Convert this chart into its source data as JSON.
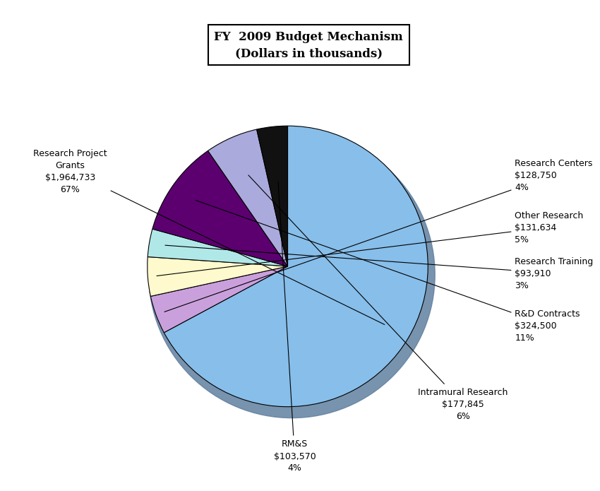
{
  "title": "FY  2009 Budget Mechanism\n(Dollars in thousands)",
  "slices": [
    {
      "label": "Research Project\nGrants\n$1,964,733\n67%",
      "value": 1964733,
      "color": "#87BEEA"
    },
    {
      "label": "Research Centers\n$128,750\n4%",
      "value": 128750,
      "color": "#C9A0DC"
    },
    {
      "label": "Other Research\n$131,634\n5%",
      "value": 131634,
      "color": "#FFFACD"
    },
    {
      "label": "Research Training\n$93,910\n3%",
      "value": 93910,
      "color": "#B0E8E8"
    },
    {
      "label": "R&D Contracts\n$324,500\n11%",
      "value": 324500,
      "color": "#5C0070"
    },
    {
      "label": "Intramural Research\n$177,845\n6%",
      "value": 177845,
      "color": "#AAAADD"
    },
    {
      "label": "RM&S\n$103,570\n4%",
      "value": 103570,
      "color": "#111111"
    }
  ],
  "shadow_color": "#6080A0",
  "title_fontsize": 12,
  "label_fontsize": 9,
  "background_color": "#ffffff"
}
